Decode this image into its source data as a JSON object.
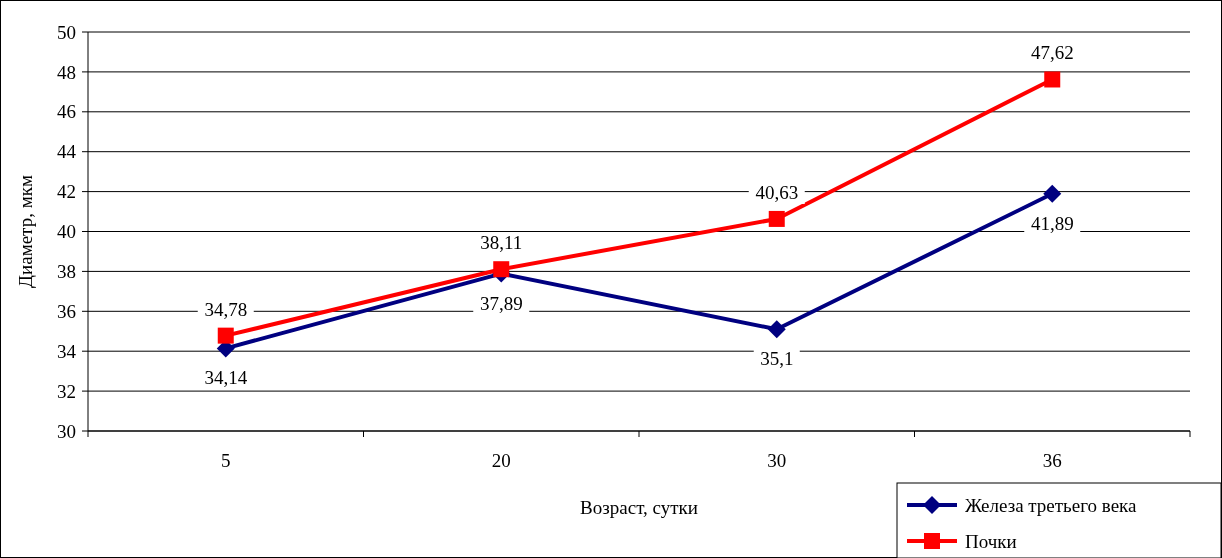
{
  "chart_data": {
    "type": "line",
    "xlabel": "Возраст, сутки",
    "ylabel": "Диаметр, мкм",
    "categories": [
      "5",
      "20",
      "30",
      "36"
    ],
    "series": [
      {
        "name": "Железа третьего века",
        "color": "#000080",
        "values": [
          34.14,
          37.89,
          35.1,
          41.89
        ],
        "value_labels": [
          "34,14",
          "37,89",
          "35,1",
          "41,89"
        ],
        "marker": "diamond"
      },
      {
        "name": "Почки",
        "color": "#ff0000",
        "values": [
          34.78,
          38.11,
          40.63,
          47.62
        ],
        "value_labels": [
          "34,78",
          "38,11",
          "40,63",
          "47,62"
        ],
        "marker": "square"
      }
    ],
    "ylim": [
      30,
      50
    ],
    "yticks": [
      30,
      32,
      34,
      36,
      38,
      40,
      42,
      44,
      46,
      48,
      50
    ],
    "grid": "y",
    "legend": "bottom right",
    "line_style": "solid"
  }
}
